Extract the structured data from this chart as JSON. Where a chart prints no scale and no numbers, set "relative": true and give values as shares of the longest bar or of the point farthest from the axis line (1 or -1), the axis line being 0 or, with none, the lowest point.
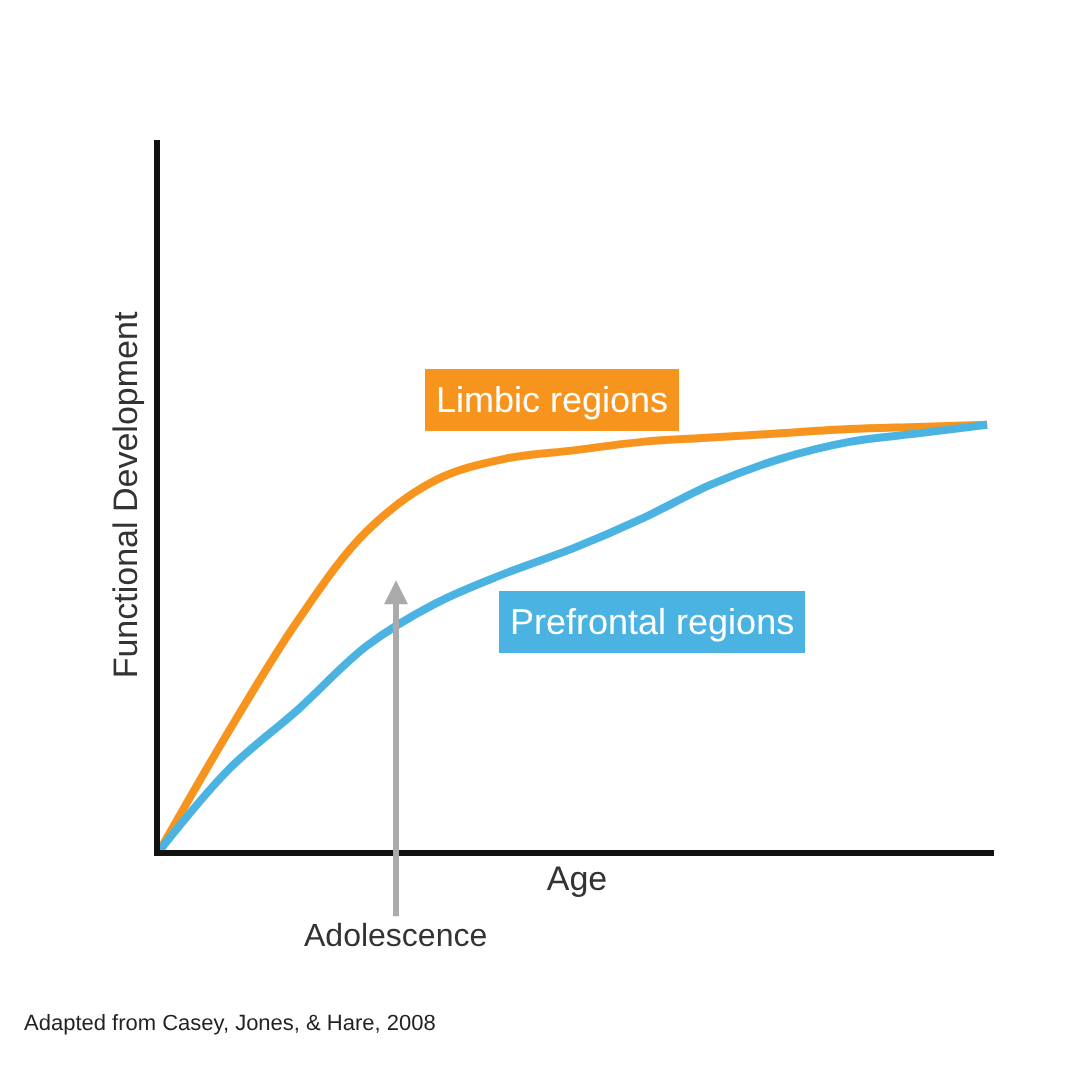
{
  "chart_data": {
    "type": "line",
    "relative": true,
    "xlabel": "Age",
    "ylabel": "Functional Development",
    "categories": [
      null,
      null,
      null,
      null,
      null,
      null,
      null,
      null,
      null,
      null,
      null,
      null,
      null
    ],
    "series": [
      {
        "name": "Limbic regions",
        "color": "#f7941d",
        "values": [
          0,
          0.28,
          0.54,
          0.75,
          0.87,
          0.92,
          0.94,
          0.96,
          0.97,
          0.98,
          0.99,
          0.995,
          1
        ]
      },
      {
        "name": "Prefrontal regions",
        "color": "#4ab3e2",
        "values": [
          0,
          0.19,
          0.33,
          0.48,
          0.58,
          0.65,
          0.71,
          0.78,
          0.86,
          0.92,
          0.96,
          0.98,
          1
        ]
      }
    ],
    "annotations": [
      "Adolescence",
      "Adapted from Casey, Jones, & Hare, 2008"
    ],
    "grid": false,
    "legend": false,
    "marker": "none",
    "line_style": "solid"
  }
}
